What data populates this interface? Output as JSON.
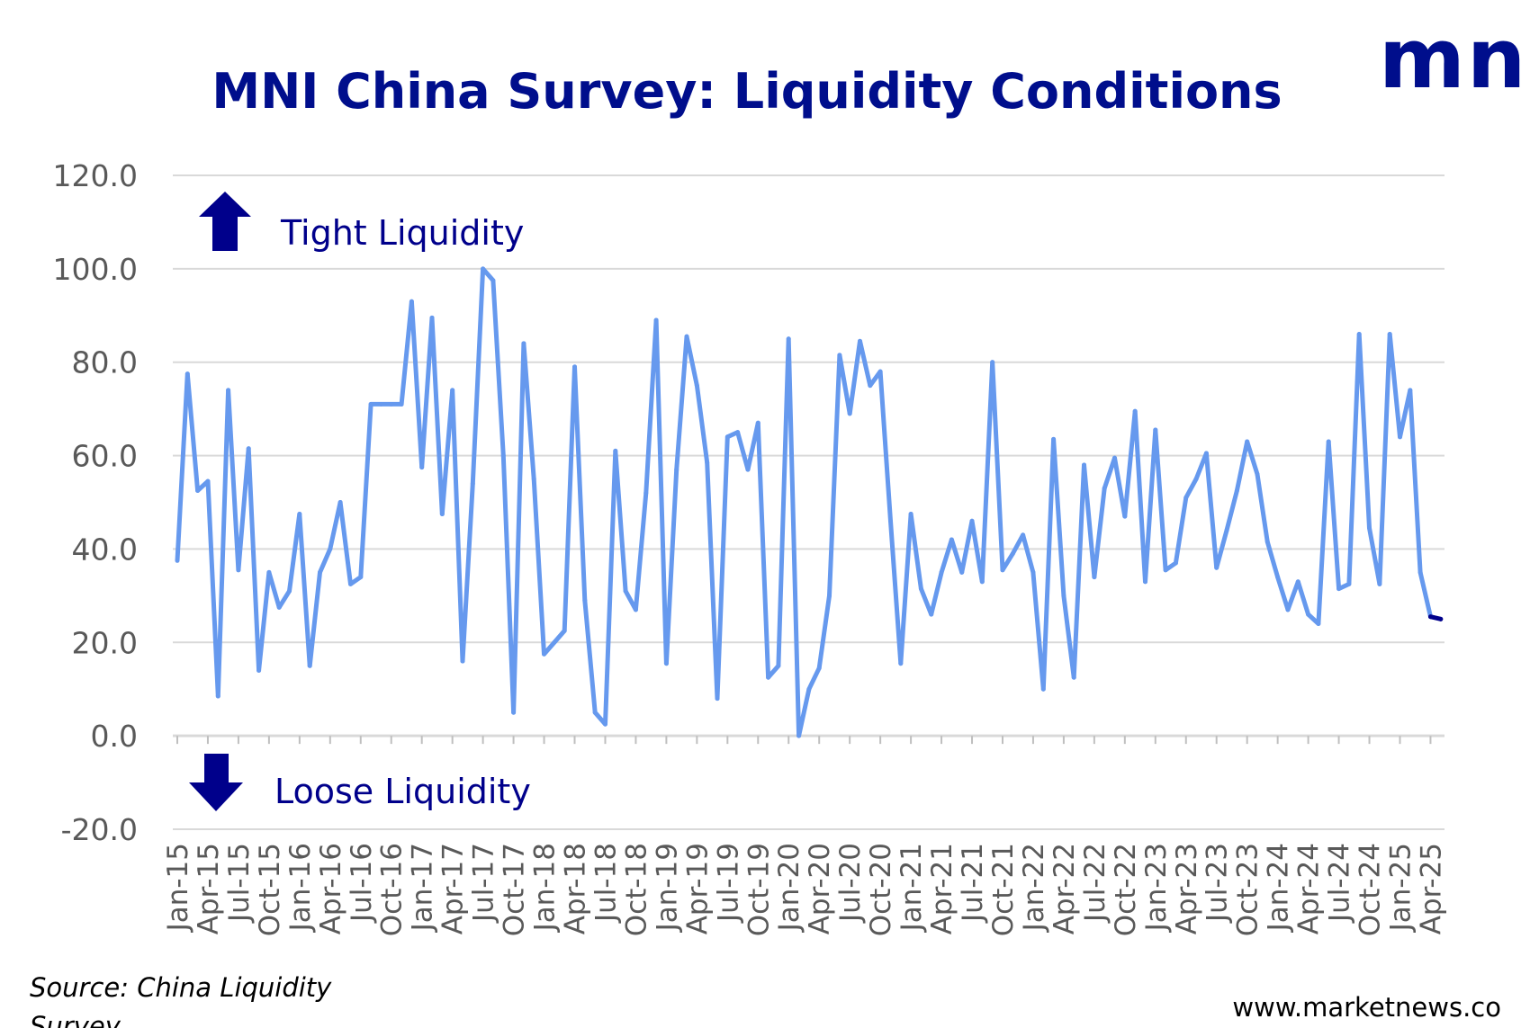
{
  "chart_data": {
    "type": "line",
    "title": "MNI China Survey: Liquidity Conditions",
    "logo_text": "mni",
    "annotations": {
      "tight": "Tight Liquidity",
      "loose": "Loose Liquidity"
    },
    "arrow_color": "#00008b",
    "source": "Source: China Liquidity Survey",
    "website": "www.marketnews.co",
    "ylim": [
      -20,
      120
    ],
    "yticks": [
      -20,
      0,
      20,
      40,
      60,
      80,
      100,
      120
    ],
    "ytick_labels": [
      "-20.0",
      "0.0",
      "20.0",
      "40.0",
      "60.0",
      "80.0",
      "100.0",
      "120.0"
    ],
    "grid": true,
    "x_tick_labels": [
      "Jan-15",
      "Apr-15",
      "Jul-15",
      "Oct-15",
      "Jan-16",
      "Apr-16",
      "Jul-16",
      "Oct-16",
      "Jan-17",
      "Apr-17",
      "Jul-17",
      "Oct-17",
      "Jan-18",
      "Apr-18",
      "Jul-18",
      "Oct-18",
      "Jan-19",
      "Apr-19",
      "Jul-19",
      "Oct-19",
      "Jan-20",
      "Apr-20",
      "Jul-20",
      "Oct-20",
      "Jan-21",
      "Apr-21",
      "Jul-21",
      "Oct-21",
      "Jan-22",
      "Apr-22",
      "Jul-22",
      "Oct-22",
      "Jan-23",
      "Apr-23",
      "Jul-23",
      "Oct-23",
      "Jan-24",
      "Apr-24",
      "Jul-24",
      "Oct-24",
      "Jan-25",
      "Apr-25"
    ],
    "x_start": "Jan-15",
    "x_frequency": "monthly",
    "series": [
      {
        "color": "#6699ee",
        "latest_color": "#00008b",
        "values": [
          37.5,
          77.5,
          52.5,
          54.5,
          8.5,
          74,
          35.5,
          61.5,
          14,
          35,
          27.5,
          31,
          47.5,
          15,
          35,
          40,
          50,
          32.5,
          34,
          71,
          71,
          71,
          71,
          93,
          57.5,
          89.5,
          47.5,
          74,
          16,
          54,
          100,
          97.5,
          60,
          5,
          84,
          55,
          17.5,
          20,
          22.5,
          79,
          29,
          5,
          2.5,
          61,
          31,
          27,
          52,
          89,
          15.5,
          57,
          85.5,
          75,
          58.5,
          8,
          64,
          65,
          57,
          67,
          12.5,
          15,
          85,
          0,
          10,
          14.5,
          30,
          81.5,
          69,
          84.5,
          75,
          78,
          46,
          15.5,
          47.5,
          31.5,
          26,
          35,
          42,
          35,
          46,
          33,
          80,
          35.5,
          39,
          43,
          35,
          10,
          63.5,
          30,
          12.5,
          58,
          34,
          53,
          59.5,
          47,
          69.5,
          33,
          65.5,
          35.5,
          37,
          51,
          55,
          60.5,
          36,
          44,
          52.5,
          63,
          56,
          41.5,
          34,
          27,
          33,
          26,
          24,
          63,
          31.5,
          32.5,
          86,
          44.5,
          32.5,
          86,
          64,
          74,
          35,
          25.5,
          25
        ]
      }
    ]
  }
}
